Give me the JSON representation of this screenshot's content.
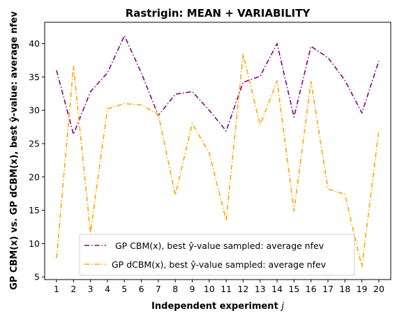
{
  "chart_data": {
    "type": "line",
    "title": "Rastrigin: MEAN + VARIABILITY",
    "xlabel": "Independent experiment j",
    "ylabel": "GP CBM(x) vs. GP dCBM(x), best ŷ-value: average nfev",
    "x": [
      1,
      2,
      3,
      4,
      5,
      6,
      7,
      8,
      9,
      10,
      11,
      12,
      13,
      14,
      15,
      16,
      17,
      18,
      19,
      20
    ],
    "xlim": [
      0.3,
      20.7
    ],
    "ylim": [
      4.6,
      43.2
    ],
    "yticks": [
      5,
      10,
      15,
      20,
      25,
      30,
      35,
      40
    ],
    "grid": false,
    "legend_position": "lower center",
    "series": [
      {
        "name": "GP CBM(x), best ŷ-value sampled: average nfev",
        "color": "#800080",
        "values": [
          36.0,
          26.4,
          32.8,
          35.6,
          41.2,
          35.6,
          29.2,
          32.4,
          32.8,
          30.0,
          26.9,
          34.2,
          35.1,
          40.0,
          29.0,
          39.6,
          37.9,
          34.5,
          29.6,
          37.4
        ]
      },
      {
        "name": "GP dCBM(x), best ŷ-value sampled: average nfev",
        "color": "#FFA500",
        "values": [
          7.8,
          36.6,
          11.6,
          30.2,
          31.0,
          30.8,
          29.4,
          17.3,
          28.0,
          23.6,
          13.5,
          38.4,
          27.8,
          34.4,
          14.9,
          34.3,
          18.2,
          17.4,
          6.5,
          27.0
        ]
      }
    ]
  }
}
